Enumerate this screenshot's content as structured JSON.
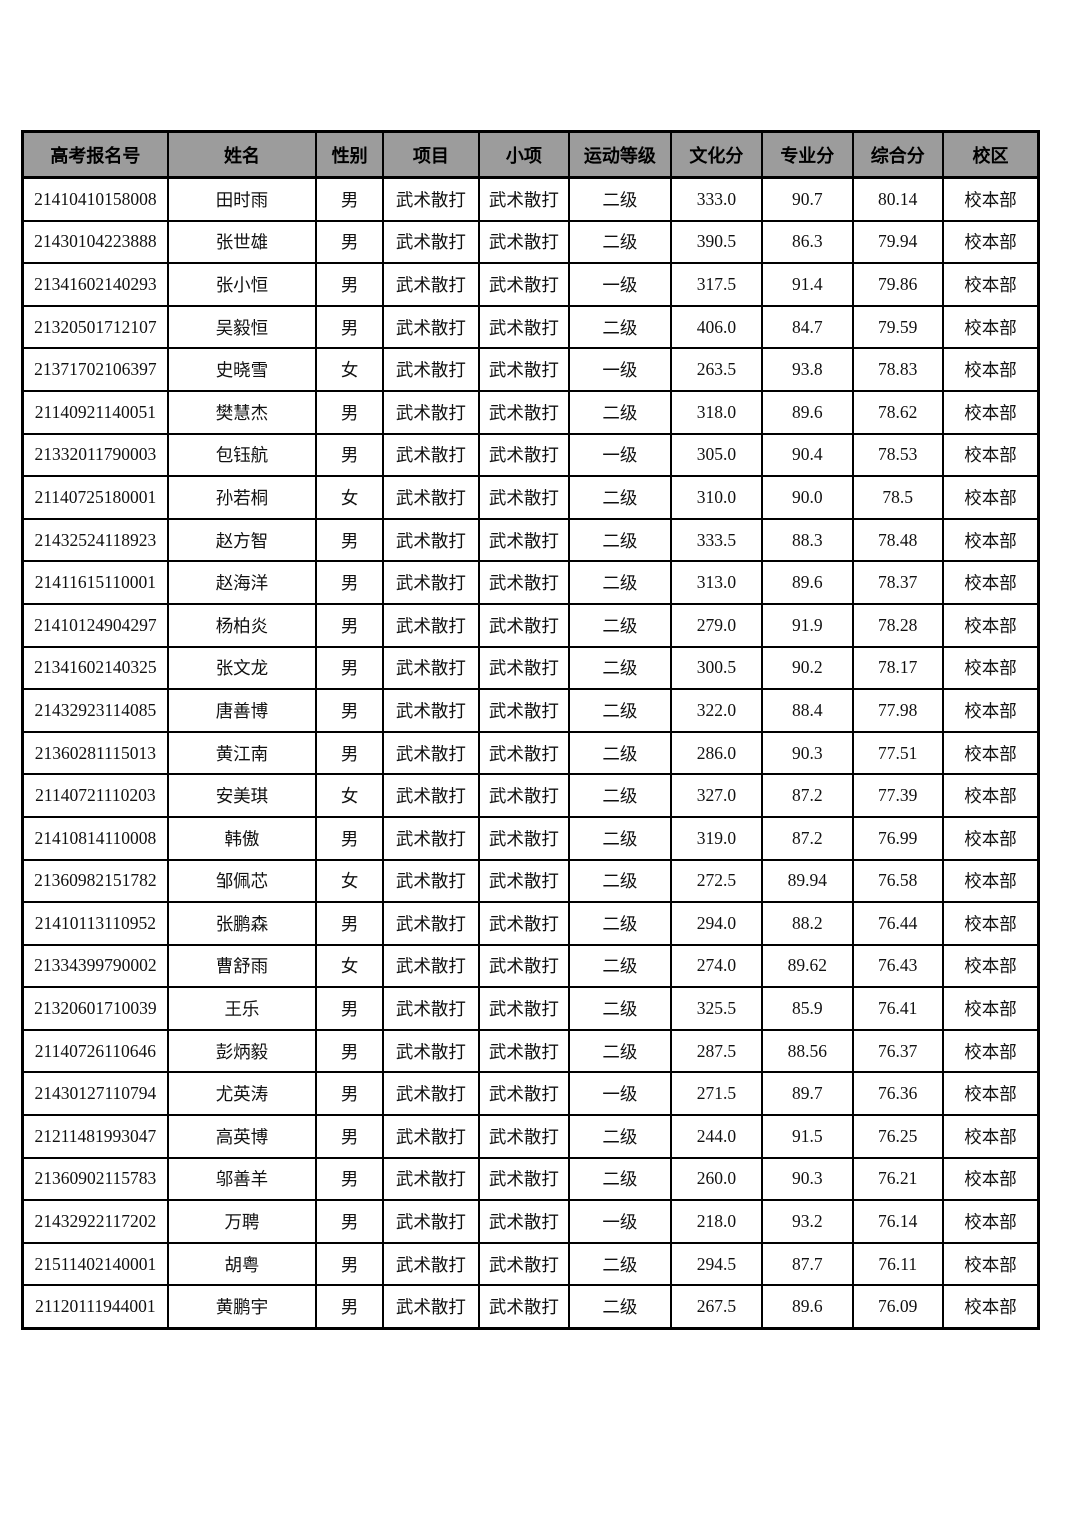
{
  "page": {
    "background_color": "#ffffff",
    "header_bg_color": "#9c9c9c",
    "border_color": "#000000"
  },
  "table": {
    "columns": [
      "高考报名号",
      "姓名",
      "性别",
      "项目",
      "小项",
      "运动等级",
      "文化分",
      "专业分",
      "综合分",
      "校区"
    ],
    "rows": [
      [
        "21410410158008",
        "田时雨",
        "男",
        "武术散打",
        "武术散打",
        "二级",
        "333.0",
        "90.7",
        "80.14",
        "校本部"
      ],
      [
        "21430104223888",
        "张世雄",
        "男",
        "武术散打",
        "武术散打",
        "二级",
        "390.5",
        "86.3",
        "79.94",
        "校本部"
      ],
      [
        "21341602140293",
        "张小恒",
        "男",
        "武术散打",
        "武术散打",
        "一级",
        "317.5",
        "91.4",
        "79.86",
        "校本部"
      ],
      [
        "21320501712107",
        "吴毅恒",
        "男",
        "武术散打",
        "武术散打",
        "二级",
        "406.0",
        "84.7",
        "79.59",
        "校本部"
      ],
      [
        "21371702106397",
        "史晓雪",
        "女",
        "武术散打",
        "武术散打",
        "一级",
        "263.5",
        "93.8",
        "78.83",
        "校本部"
      ],
      [
        "21140921140051",
        "樊慧杰",
        "男",
        "武术散打",
        "武术散打",
        "二级",
        "318.0",
        "89.6",
        "78.62",
        "校本部"
      ],
      [
        "21332011790003",
        "包钰航",
        "男",
        "武术散打",
        "武术散打",
        "一级",
        "305.0",
        "90.4",
        "78.53",
        "校本部"
      ],
      [
        "21140725180001",
        "孙若桐",
        "女",
        "武术散打",
        "武术散打",
        "二级",
        "310.0",
        "90.0",
        "78.5",
        "校本部"
      ],
      [
        "21432524118923",
        "赵方智",
        "男",
        "武术散打",
        "武术散打",
        "二级",
        "333.5",
        "88.3",
        "78.48",
        "校本部"
      ],
      [
        "21411615110001",
        "赵海洋",
        "男",
        "武术散打",
        "武术散打",
        "二级",
        "313.0",
        "89.6",
        "78.37",
        "校本部"
      ],
      [
        "21410124904297",
        "杨柏炎",
        "男",
        "武术散打",
        "武术散打",
        "二级",
        "279.0",
        "91.9",
        "78.28",
        "校本部"
      ],
      [
        "21341602140325",
        "张文龙",
        "男",
        "武术散打",
        "武术散打",
        "二级",
        "300.5",
        "90.2",
        "78.17",
        "校本部"
      ],
      [
        "21432923114085",
        "唐善博",
        "男",
        "武术散打",
        "武术散打",
        "二级",
        "322.0",
        "88.4",
        "77.98",
        "校本部"
      ],
      [
        "21360281115013",
        "黄江南",
        "男",
        "武术散打",
        "武术散打",
        "二级",
        "286.0",
        "90.3",
        "77.51",
        "校本部"
      ],
      [
        "21140721110203",
        "安美琪",
        "女",
        "武术散打",
        "武术散打",
        "二级",
        "327.0",
        "87.2",
        "77.39",
        "校本部"
      ],
      [
        "21410814110008",
        "韩傲",
        "男",
        "武术散打",
        "武术散打",
        "二级",
        "319.0",
        "87.2",
        "76.99",
        "校本部"
      ],
      [
        "21360982151782",
        "邹佩芯",
        "女",
        "武术散打",
        "武术散打",
        "二级",
        "272.5",
        "89.94",
        "76.58",
        "校本部"
      ],
      [
        "21410113110952",
        "张鹏森",
        "男",
        "武术散打",
        "武术散打",
        "二级",
        "294.0",
        "88.2",
        "76.44",
        "校本部"
      ],
      [
        "21334399790002",
        "曹舒雨",
        "女",
        "武术散打",
        "武术散打",
        "二级",
        "274.0",
        "89.62",
        "76.43",
        "校本部"
      ],
      [
        "21320601710039",
        "王乐",
        "男",
        "武术散打",
        "武术散打",
        "二级",
        "325.5",
        "85.9",
        "76.41",
        "校本部"
      ],
      [
        "21140726110646",
        "彭炳毅",
        "男",
        "武术散打",
        "武术散打",
        "二级",
        "287.5",
        "88.56",
        "76.37",
        "校本部"
      ],
      [
        "21430127110794",
        "尤英涛",
        "男",
        "武术散打",
        "武术散打",
        "一级",
        "271.5",
        "89.7",
        "76.36",
        "校本部"
      ],
      [
        "21211481993047",
        "高英博",
        "男",
        "武术散打",
        "武术散打",
        "二级",
        "244.0",
        "91.5",
        "76.25",
        "校本部"
      ],
      [
        "21360902115783",
        "邬善羊",
        "男",
        "武术散打",
        "武术散打",
        "二级",
        "260.0",
        "90.3",
        "76.21",
        "校本部"
      ],
      [
        "21432922117202",
        "万聘",
        "男",
        "武术散打",
        "武术散打",
        "一级",
        "218.0",
        "93.2",
        "76.14",
        "校本部"
      ],
      [
        "21511402140001",
        "胡粤",
        "男",
        "武术散打",
        "武术散打",
        "二级",
        "294.5",
        "87.7",
        "76.11",
        "校本部"
      ],
      [
        "21120111944001",
        "黄鹏宇",
        "男",
        "武术散打",
        "武术散打",
        "二级",
        "267.5",
        "89.6",
        "76.09",
        "校本部"
      ]
    ]
  }
}
